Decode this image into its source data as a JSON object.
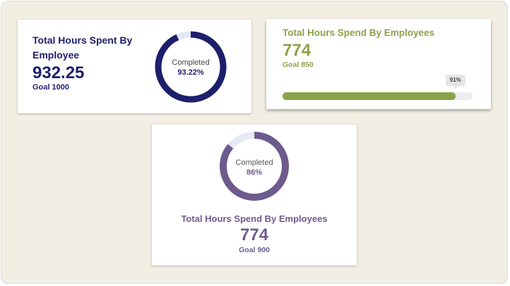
{
  "cards": [
    {
      "title": "Total Hours Spent By Employee",
      "value": "932.25",
      "goal": "Goal 1000",
      "ring": {
        "label": "Completed",
        "percent_text": "93.22%",
        "fraction": 0.9322,
        "color": "#1d1f6b",
        "track_color": "#e4e7f5"
      }
    },
    {
      "title": "Total Hours Spend By Employees",
      "value": "774",
      "goal": "Goal 850",
      "progress": {
        "percent_text": "91%",
        "fraction": 0.91,
        "color": "#8aa34a",
        "track_color": "#ececec"
      }
    },
    {
      "title": "Total Hours Spend By Employees",
      "value": "774",
      "goal": "Goal 900",
      "ring": {
        "label": "Completed",
        "percent_text": "86%",
        "fraction": 0.86,
        "color": "#6e5b8e",
        "track_color": "#e7e9f5"
      }
    }
  ],
  "colors": {
    "background": "#f3eee4",
    "card": "#ffffff"
  }
}
